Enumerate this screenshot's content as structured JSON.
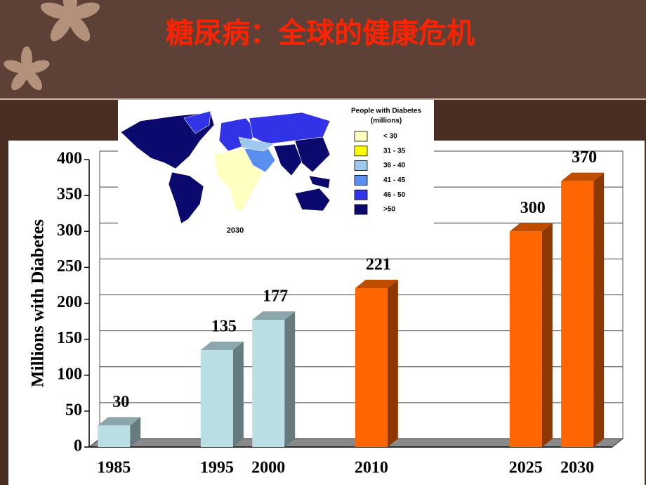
{
  "chart_data": {
    "type": "bar3d",
    "title": "糖尿病：全球的健康危机",
    "y_label": "Millions with Diabetes",
    "x": [
      1985,
      1995,
      2000,
      2010,
      2025,
      2030
    ],
    "values": [
      30,
      135,
      177,
      221,
      300,
      370
    ],
    "colors": [
      "#b9dfe4",
      "#b9dfe4",
      "#b9dfe4",
      "#ff6600",
      "#ff6600",
      "#ff6600"
    ],
    "xlim": [
      1982.6,
      2033.4
    ],
    "ylim": [
      0,
      400
    ],
    "yticks": [
      0,
      50,
      100,
      150,
      200,
      250,
      300,
      350,
      400
    ],
    "grid": true
  },
  "inset_map": {
    "legend_title": [
      "People with Diabetes",
      "(millions)"
    ],
    "legend": [
      {
        "label": "< 30",
        "color": "#ffffc0"
      },
      {
        "label": "31 - 35",
        "color": "#ffff00"
      },
      {
        "label": "36 - 40",
        "color": "#9dc8f0"
      },
      {
        "label": "41 - 45",
        "color": "#5a8ef0"
      },
      {
        "label": "46 - 50",
        "color": "#3232e6"
      },
      {
        "label": ">50",
        "color": "#0a0a6e"
      }
    ],
    "caption": "2030"
  }
}
